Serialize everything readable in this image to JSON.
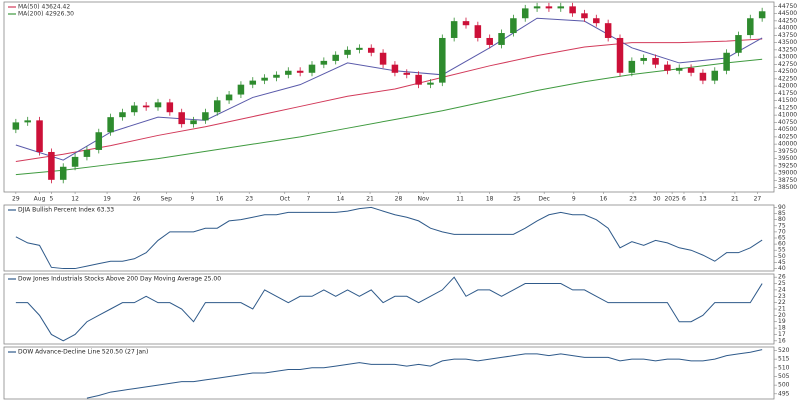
{
  "chart_data": [
    {
      "type": "candlestick",
      "xlim": [
        -1,
        64
      ],
      "ylim": [
        38350,
        44900
      ],
      "yticks": [
        38500,
        38750,
        39000,
        39250,
        39500,
        39750,
        40000,
        40250,
        40500,
        40750,
        41000,
        41250,
        41500,
        41750,
        42000,
        42250,
        42500,
        42750,
        43000,
        43250,
        43500,
        43750,
        44000,
        44250,
        44500,
        44750
      ],
      "xticks": [
        {
          "value": 0,
          "label": "29"
        },
        {
          "value": 2,
          "label": "Aug"
        },
        {
          "value": 3,
          "label": "5"
        },
        {
          "value": 5,
          "label": "12"
        },
        {
          "value": 7.7,
          "label": "19"
        },
        {
          "value": 10.2,
          "label": "26"
        },
        {
          "value": 12.7,
          "label": "Sep"
        },
        {
          "value": 14.9,
          "label": "9"
        },
        {
          "value": 17.2,
          "label": "16"
        },
        {
          "value": 19.7,
          "label": "23"
        },
        {
          "value": 22.7,
          "label": "Oct"
        },
        {
          "value": 24.7,
          "label": "7"
        },
        {
          "value": 27.4,
          "label": "14"
        },
        {
          "value": 29.9,
          "label": "21"
        },
        {
          "value": 32.3,
          "label": "28"
        },
        {
          "value": 34.4,
          "label": "Nov"
        },
        {
          "value": 37.5,
          "label": "11"
        },
        {
          "value": 40,
          "label": "18"
        },
        {
          "value": 42.3,
          "label": "25"
        },
        {
          "value": 44.6,
          "label": "Dec"
        },
        {
          "value": 47.1,
          "label": "9"
        },
        {
          "value": 49.6,
          "label": "16"
        },
        {
          "value": 52.1,
          "label": "23"
        },
        {
          "value": 54.1,
          "label": "30"
        },
        {
          "value": 55.4,
          "label": "2025"
        },
        {
          "value": 56.4,
          "label": "6"
        },
        {
          "value": 58,
          "label": "13"
        },
        {
          "value": 60.7,
          "label": "21"
        },
        {
          "value": 62.6,
          "label": "27"
        }
      ],
      "up_color": "#2e8b2e",
      "down_color": "#cc1038",
      "open": [
        40500,
        40750,
        40820,
        39730,
        38770,
        39220,
        39560,
        39800,
        40410,
        40930,
        41100,
        41330,
        41270,
        41440,
        41100,
        40690,
        40820,
        41100,
        41510,
        41710,
        42050,
        42190,
        42290,
        42390,
        42530,
        42460,
        42740,
        42870,
        43080,
        43250,
        43320,
        43150,
        42740,
        42460,
        42390,
        42050,
        42120,
        43660,
        44240,
        44100,
        43660,
        43420,
        43830,
        44340,
        44680,
        44750,
        44680,
        44750,
        44510,
        44340,
        44170,
        43660,
        42460,
        42870,
        42970,
        42740,
        42530,
        42630,
        42460,
        42190,
        42530,
        43150,
        43760,
        44340
      ],
      "high": [
        40870,
        40940,
        40940,
        39850,
        39340,
        39680,
        39920,
        40530,
        41050,
        41220,
        41450,
        41450,
        41560,
        41560,
        41220,
        40940,
        41220,
        41630,
        41830,
        42170,
        42310,
        42410,
        42510,
        42650,
        42650,
        42860,
        42990,
        43200,
        43370,
        43440,
        43440,
        43270,
        42860,
        42580,
        42510,
        42240,
        43780,
        44360,
        44360,
        44220,
        43780,
        43950,
        44460,
        44800,
        44870,
        44870,
        44870,
        44870,
        44630,
        44460,
        44290,
        43780,
        42990,
        43090,
        43090,
        42860,
        42750,
        42750,
        42580,
        42650,
        43270,
        43880,
        44460,
        44700
      ],
      "low": [
        40380,
        40630,
        39610,
        38650,
        38650,
        39100,
        39440,
        39680,
        40290,
        40810,
        40980,
        41150,
        41150,
        40980,
        40570,
        40570,
        40700,
        40980,
        41390,
        41590,
        41930,
        42070,
        42170,
        42270,
        42340,
        42340,
        42620,
        42750,
        42960,
        43130,
        43030,
        42620,
        42340,
        42270,
        41930,
        41930,
        42000,
        43540,
        43980,
        43540,
        43300,
        43300,
        43710,
        44220,
        44560,
        44560,
        44560,
        44390,
        44220,
        44050,
        43540,
        42340,
        42340,
        42750,
        42620,
        42410,
        42410,
        42340,
        42070,
        42070,
        42410,
        43030,
        43640,
        44220
      ],
      "close": [
        40750,
        40820,
        39730,
        38770,
        39220,
        39560,
        39800,
        40410,
        40930,
        41100,
        41330,
        41270,
        41440,
        41100,
        40690,
        40820,
        41100,
        41510,
        41710,
        42050,
        42190,
        42290,
        42390,
        42530,
        42460,
        42740,
        42870,
        43080,
        43250,
        43320,
        43150,
        42740,
        42460,
        42390,
        42050,
        42120,
        43660,
        44240,
        44100,
        43660,
        43420,
        43830,
        44340,
        44680,
        44750,
        44680,
        44750,
        44510,
        44340,
        44170,
        43660,
        42460,
        42870,
        42970,
        42740,
        42530,
        42630,
        42460,
        42190,
        42530,
        43150,
        43760,
        44340,
        44580
      ],
      "series": [
        {
          "name": "MA(50) 43624.42",
          "color": "#d23a5a",
          "x": [
            0,
            4,
            8,
            12,
            16,
            20,
            24,
            28,
            32,
            36,
            40,
            44,
            48,
            52,
            56,
            60,
            63
          ],
          "values": [
            39400,
            39650,
            39950,
            40300,
            40600,
            40950,
            41300,
            41650,
            41900,
            42300,
            42700,
            43050,
            43350,
            43500,
            43500,
            43550,
            43624.42
          ]
        },
        {
          "name": "MA(200) 42926.30",
          "color": "#3f9a3f",
          "x": [
            0,
            4,
            8,
            12,
            16,
            20,
            24,
            28,
            32,
            36,
            40,
            44,
            48,
            52,
            56,
            60,
            63
          ],
          "values": [
            38950,
            39100,
            39300,
            39500,
            39750,
            40000,
            40250,
            40550,
            40850,
            41150,
            41500,
            41850,
            42150,
            42400,
            42600,
            42800,
            42926.3
          ]
        },
        {
          "color": "#5a5aaa",
          "x": [
            0,
            4,
            8,
            12,
            16,
            20,
            24,
            28,
            32,
            36,
            40,
            44,
            48,
            52,
            56,
            60,
            63
          ],
          "values": [
            39970,
            39450,
            40410,
            40930,
            40820,
            41610,
            42050,
            42800,
            42530,
            42390,
            43320,
            44340,
            44240,
            43320,
            42800,
            42970,
            43660
          ]
        }
      ]
    },
    {
      "type": "line",
      "title": "DJIA Bullish Percent Index 63.33",
      "xlim": [
        -1,
        64
      ],
      "ylim": [
        38,
        92
      ],
      "yticks": [
        40,
        45,
        50,
        55,
        60,
        65,
        70,
        75,
        80,
        85,
        90
      ],
      "series": [
        {
          "color": "#2f5a8a",
          "values": [
            66,
            61,
            59,
            41,
            40,
            40,
            42,
            44,
            46,
            46,
            48,
            53,
            63,
            70,
            70,
            70,
            73,
            73,
            79,
            80,
            82,
            84,
            84,
            86,
            86,
            86,
            86,
            86,
            87,
            89,
            90,
            87,
            84,
            82,
            79,
            73,
            70,
            68,
            68,
            68,
            68,
            68,
            68,
            73,
            79,
            84,
            86,
            84,
            84,
            80,
            73,
            57,
            62,
            59,
            63,
            61,
            57,
            55,
            51,
            46,
            53,
            53,
            57,
            63.33
          ]
        }
      ]
    },
    {
      "type": "line",
      "title": "Dow Jones Industrials Stocks Above 200 Day Moving Average 25.00",
      "xlim": [
        -1,
        64
      ],
      "ylim": [
        15.5,
        26.5
      ],
      "yticks": [
        16,
        17,
        18,
        19,
        20,
        21,
        22,
        23,
        24,
        25,
        26
      ],
      "series": [
        {
          "color": "#2f5a8a",
          "values": [
            22,
            22,
            20,
            17,
            16,
            17,
            19,
            20,
            21,
            22,
            22,
            23,
            22,
            22,
            21,
            19,
            22,
            22,
            22,
            22,
            21,
            24,
            23,
            22,
            23,
            23,
            24,
            23,
            24,
            23,
            24,
            22,
            23,
            23,
            22,
            23,
            24,
            26,
            23,
            24,
            24,
            23,
            24,
            25,
            25,
            25,
            25,
            24,
            24,
            23,
            22,
            22,
            22,
            22,
            22,
            22,
            19,
            19,
            20,
            22,
            22,
            22,
            22,
            25
          ]
        }
      ]
    },
    {
      "type": "line",
      "title": "DOW Advance-Decline Line 520.50 (27 Jan)",
      "xlim": [
        -1,
        64
      ],
      "ylim": [
        492,
        522
      ],
      "yticks": [
        495,
        500,
        505,
        510,
        515,
        520
      ],
      "series": [
        {
          "color": "#2f5a8a",
          "values": [
            null,
            null,
            null,
            null,
            null,
            null,
            492.5,
            494,
            496,
            497,
            498,
            499,
            500,
            501,
            502,
            502,
            503,
            504,
            505,
            506,
            507,
            507,
            508,
            509,
            509,
            510,
            510,
            511,
            512,
            513,
            512,
            512,
            512,
            511,
            512,
            511,
            514,
            515,
            515,
            514,
            515,
            516,
            517,
            518,
            518,
            517,
            518,
            517,
            516,
            516,
            516,
            514,
            515,
            515,
            514,
            515,
            515,
            514,
            514,
            515,
            517,
            518,
            519,
            520.5
          ]
        }
      ]
    }
  ]
}
